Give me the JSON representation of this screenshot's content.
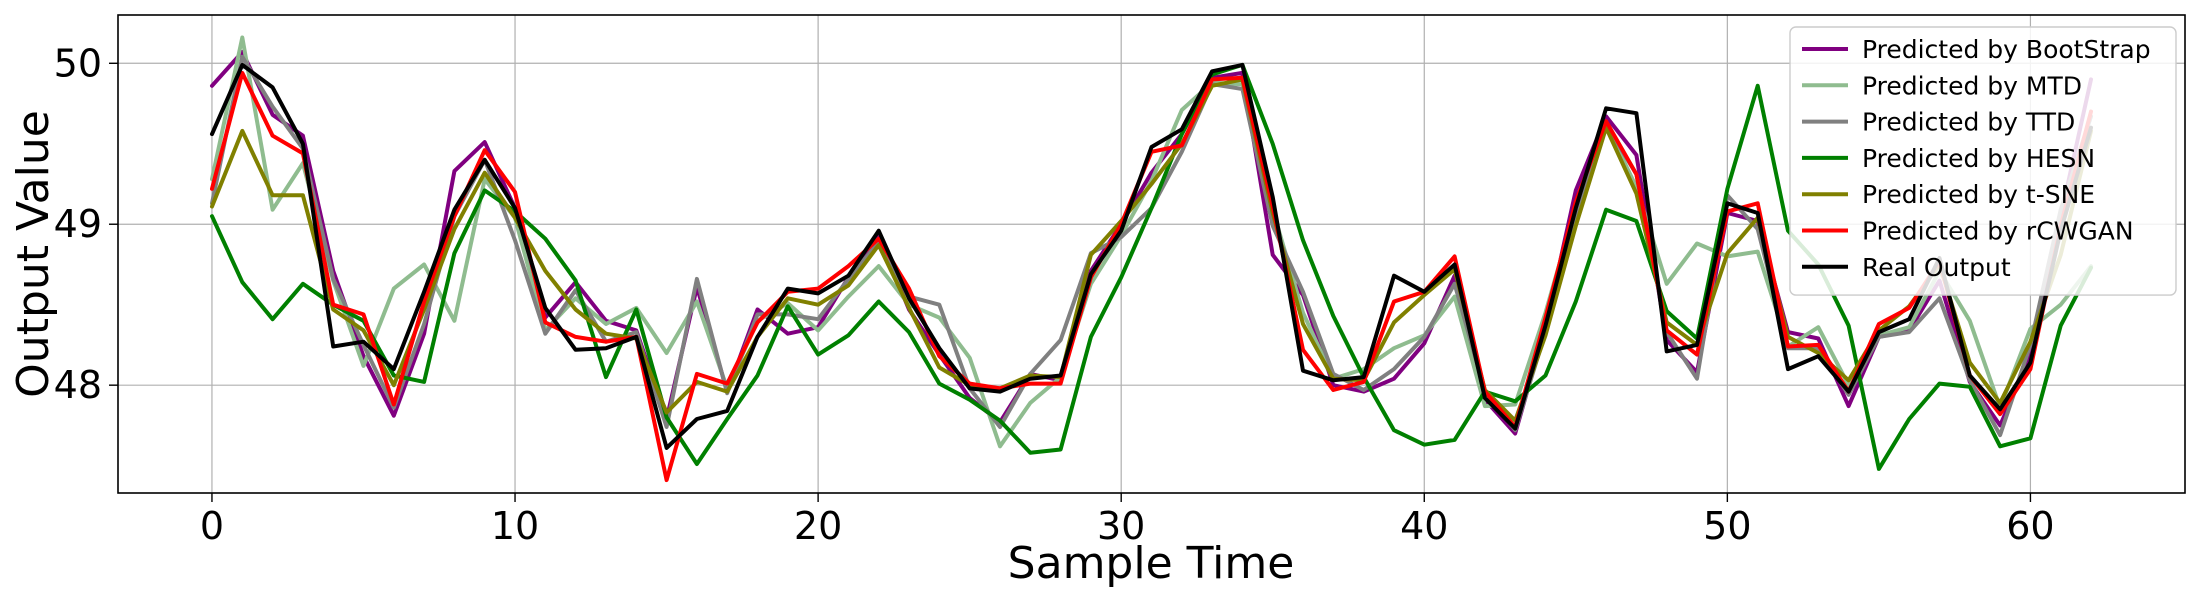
{
  "chart_data": {
    "type": "line",
    "xlabel": "Sample Time",
    "ylabel": "Output Value",
    "xlim": [
      -3.1,
      65.1
    ],
    "ylim": [
      47.33,
      50.3
    ],
    "xticks": [
      0,
      10,
      20,
      30,
      40,
      50,
      60
    ],
    "yticks": [
      48,
      49,
      50
    ],
    "grid": true,
    "legend_position": "top-right",
    "x": [
      0,
      1,
      2,
      3,
      4,
      5,
      6,
      7,
      8,
      9,
      10,
      11,
      12,
      13,
      14,
      15,
      16,
      17,
      18,
      19,
      20,
      21,
      22,
      23,
      24,
      25,
      26,
      27,
      28,
      29,
      30,
      31,
      32,
      33,
      34,
      35,
      36,
      37,
      38,
      39,
      40,
      41,
      42,
      43,
      44,
      45,
      46,
      47,
      48,
      49,
      50,
      51,
      52,
      53,
      54,
      55,
      56,
      57,
      58,
      59,
      60,
      61,
      62
    ],
    "series": [
      {
        "name": "Predicted by BootStrap",
        "color": "#800080",
        "values": [
          49.86,
          50.07,
          49.68,
          49.55,
          48.71,
          48.18,
          47.81,
          48.32,
          49.33,
          49.51,
          49.1,
          48.42,
          48.64,
          48.4,
          48.34,
          47.79,
          48.61,
          47.96,
          48.47,
          48.32,
          48.36,
          48.67,
          48.92,
          48.47,
          48.19,
          47.92,
          47.77,
          48.07,
          48.03,
          48.71,
          49.0,
          49.32,
          49.56,
          49.91,
          49.94,
          48.81,
          48.56,
          48.0,
          47.96,
          48.04,
          48.26,
          48.68,
          47.91,
          47.7,
          48.36,
          49.21,
          49.67,
          49.43,
          48.28,
          48.08,
          49.07,
          49.02,
          48.33,
          48.29,
          47.87,
          48.3,
          48.34,
          48.65,
          48.02,
          47.75,
          48.18,
          49.05,
          49.9
        ]
      },
      {
        "name": "Predicted by MTD",
        "color": "#8fbc8f",
        "values": [
          49.28,
          50.16,
          49.09,
          49.38,
          48.65,
          48.12,
          48.6,
          48.75,
          48.4,
          49.28,
          49.04,
          48.34,
          48.54,
          48.38,
          48.48,
          48.2,
          48.52,
          47.98,
          48.4,
          48.51,
          48.34,
          48.55,
          48.74,
          48.5,
          48.42,
          48.17,
          47.62,
          47.89,
          48.05,
          48.63,
          48.93,
          49.27,
          49.71,
          49.88,
          49.87,
          49.09,
          48.45,
          48.04,
          48.1,
          48.23,
          48.31,
          48.55,
          47.87,
          47.88,
          48.45,
          49.11,
          49.62,
          49.23,
          48.63,
          48.88,
          48.8,
          48.83,
          48.24,
          48.36,
          48.0,
          48.31,
          48.36,
          48.71,
          48.4,
          47.86,
          48.35,
          48.5,
          48.74
        ]
      },
      {
        "name": "Predicted by TTD",
        "color": "#808080",
        "values": [
          49.13,
          50.04,
          49.73,
          49.47,
          48.66,
          48.25,
          47.86,
          48.38,
          49.05,
          49.4,
          48.9,
          48.32,
          48.59,
          48.27,
          48.33,
          47.74,
          48.66,
          47.95,
          48.44,
          48.44,
          48.41,
          48.66,
          48.89,
          48.55,
          48.5,
          47.98,
          47.74,
          48.07,
          48.28,
          48.82,
          48.92,
          49.1,
          49.45,
          49.87,
          49.84,
          48.99,
          48.58,
          48.07,
          47.97,
          48.1,
          48.3,
          48.63,
          47.96,
          47.72,
          48.33,
          49.06,
          49.62,
          49.31,
          48.33,
          48.04,
          49.18,
          48.97,
          48.23,
          48.23,
          47.94,
          48.3,
          48.33,
          48.54,
          48.03,
          47.69,
          48.25,
          49.09,
          49.67
        ]
      },
      {
        "name": "Predicted by HESN",
        "color": "#008000",
        "values": [
          49.05,
          48.64,
          48.41,
          48.63,
          48.5,
          48.4,
          48.06,
          48.02,
          48.82,
          49.21,
          49.08,
          48.91,
          48.65,
          48.05,
          48.47,
          47.8,
          47.51,
          47.79,
          48.06,
          48.49,
          48.19,
          48.31,
          48.52,
          48.33,
          48.01,
          47.91,
          47.78,
          47.58,
          47.6,
          48.3,
          48.67,
          49.1,
          49.56,
          49.93,
          49.99,
          49.5,
          48.9,
          48.43,
          48.05,
          47.72,
          47.63,
          47.66,
          47.96,
          47.9,
          48.06,
          48.52,
          49.09,
          49.02,
          48.46,
          48.29,
          49.22,
          49.86,
          48.96,
          48.75,
          48.37,
          47.48,
          47.79,
          48.01,
          47.99,
          47.62,
          47.67,
          48.37,
          48.73
        ]
      },
      {
        "name": "Predicted by t-SNE",
        "color": "#808000",
        "values": [
          49.11,
          49.58,
          49.18,
          49.18,
          48.47,
          48.34,
          48.0,
          48.47,
          48.97,
          49.32,
          49.04,
          48.71,
          48.47,
          48.32,
          48.29,
          47.83,
          48.02,
          47.96,
          48.3,
          48.54,
          48.5,
          48.62,
          48.87,
          48.48,
          48.11,
          48.0,
          47.98,
          48.06,
          48.05,
          48.81,
          49.02,
          49.25,
          49.5,
          49.86,
          49.9,
          49.07,
          48.38,
          48.04,
          48.03,
          48.39,
          48.56,
          48.72,
          47.97,
          47.78,
          48.31,
          48.99,
          49.6,
          49.19,
          48.39,
          48.25,
          48.82,
          49.04,
          48.3,
          48.2,
          48.03,
          48.34,
          48.49,
          48.75,
          48.14,
          47.89,
          48.27,
          48.81,
          49.58
        ]
      },
      {
        "name": "Predicted by rCWGAN",
        "color": "#ff0000",
        "values": [
          49.22,
          49.94,
          49.55,
          49.44,
          48.5,
          48.44,
          47.88,
          48.52,
          49.05,
          49.46,
          49.2,
          48.39,
          48.3,
          48.27,
          48.3,
          47.41,
          48.07,
          48.01,
          48.39,
          48.58,
          48.6,
          48.74,
          48.91,
          48.6,
          48.18,
          48.01,
          47.98,
          48.01,
          48.01,
          48.67,
          49.0,
          49.45,
          49.49,
          49.9,
          49.91,
          49.11,
          48.22,
          47.97,
          48.02,
          48.52,
          48.58,
          48.8,
          47.96,
          47.74,
          48.42,
          49.14,
          49.64,
          49.31,
          48.34,
          48.19,
          49.08,
          49.13,
          48.24,
          48.25,
          47.96,
          48.38,
          48.48,
          48.77,
          48.06,
          47.82,
          48.1,
          48.99,
          49.7
        ]
      },
      {
        "name": "Real Output",
        "color": "#000000",
        "values": [
          49.56,
          49.99,
          49.85,
          49.5,
          48.24,
          48.27,
          48.1,
          48.58,
          49.09,
          49.4,
          49.1,
          48.48,
          48.22,
          48.23,
          48.3,
          47.61,
          47.79,
          47.84,
          48.3,
          48.6,
          48.57,
          48.68,
          48.96,
          48.54,
          48.23,
          47.98,
          47.96,
          48.04,
          48.06,
          48.69,
          48.96,
          49.48,
          49.59,
          49.95,
          49.99,
          49.17,
          48.09,
          48.03,
          48.05,
          48.68,
          48.58,
          48.75,
          47.92,
          47.73,
          48.37,
          49.1,
          49.72,
          49.69,
          48.21,
          48.25,
          49.13,
          49.07,
          48.1,
          48.18,
          47.96,
          48.33,
          48.41,
          48.79,
          48.06,
          47.85,
          48.14,
          48.96,
          49.6
        ]
      }
    ]
  }
}
